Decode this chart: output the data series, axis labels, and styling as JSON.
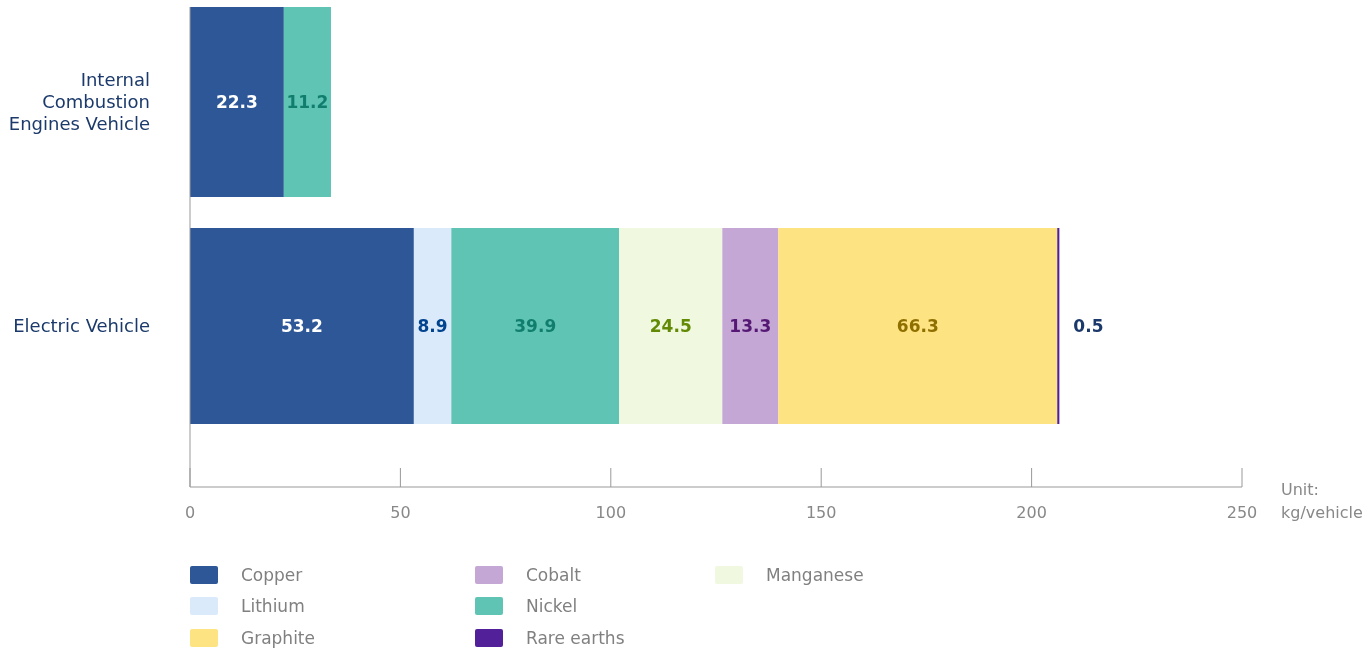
{
  "chart_data": {
    "type": "bar",
    "orientation": "horizontal",
    "stacked": true,
    "data_labels": true,
    "legend": "bottom",
    "grid": false,
    "categories": [
      "Internal Combustion Engines Vehicle",
      "Electric Vehicle"
    ],
    "xlabel": "Unit: kg/vehicle",
    "xlim": [
      0,
      250
    ],
    "xticks": [
      0,
      50,
      100,
      150,
      200,
      250
    ],
    "series": [
      {
        "name": "Copper",
        "color": "#2e5797",
        "values": [
          22.3,
          53.2
        ]
      },
      {
        "name": "Lithium",
        "color": "#dbeafb",
        "values": [
          null,
          8.9
        ]
      },
      {
        "name": "Nickel",
        "color": "#5fc4b4",
        "values": [
          11.2,
          39.9
        ]
      },
      {
        "name": "Manganese",
        "color": "#f1f8e0",
        "values": [
          null,
          24.5
        ]
      },
      {
        "name": "Cobalt",
        "color": "#c4a7d4",
        "values": [
          null,
          13.3
        ]
      },
      {
        "name": "Graphite",
        "color": "#fee383",
        "values": [
          null,
          66.3
        ]
      },
      {
        "name": "Rare earths",
        "color": "#52219a",
        "values": [
          null,
          0.5
        ]
      }
    ]
  }
}
